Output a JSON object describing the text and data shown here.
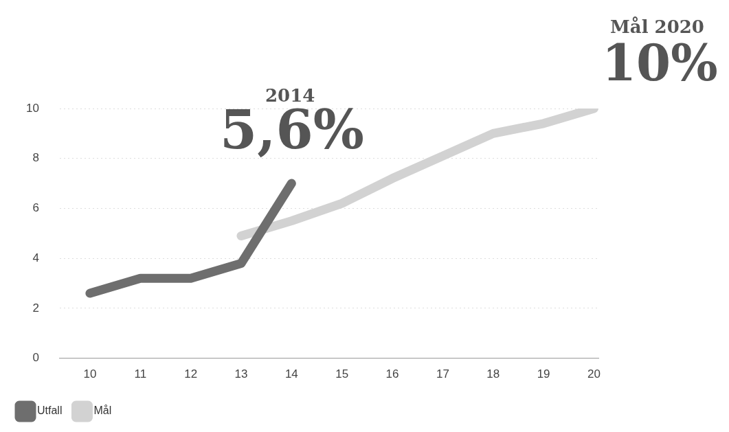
{
  "chart_data": {
    "type": "line",
    "x": [
      10,
      11,
      12,
      13,
      14,
      15,
      16,
      17,
      18,
      19,
      20
    ],
    "series": [
      {
        "name": "Utfall",
        "color": "#6e6e6e",
        "values": [
          2.6,
          3.2,
          3.2,
          3.8,
          7.0,
          null,
          null,
          null,
          null,
          null,
          null
        ]
      },
      {
        "name": "Mål",
        "color": "#d2d2d2",
        "values": [
          null,
          null,
          null,
          4.9,
          5.5,
          6.2,
          7.2,
          8.1,
          9.0,
          9.4,
          10.0
        ]
      }
    ],
    "xlim": [
      9.4,
      20.1
    ],
    "xticks": [
      10,
      11,
      12,
      13,
      14,
      15,
      16,
      17,
      18,
      19,
      20
    ],
    "ylim": [
      0,
      10
    ],
    "yticks": [
      0,
      2,
      4,
      6,
      8,
      10
    ],
    "grid": "y",
    "legend": "bottom left",
    "marker": "none",
    "annotations": [
      "2014",
      "5,6%",
      "Mål 2020",
      "10%"
    ]
  }
}
